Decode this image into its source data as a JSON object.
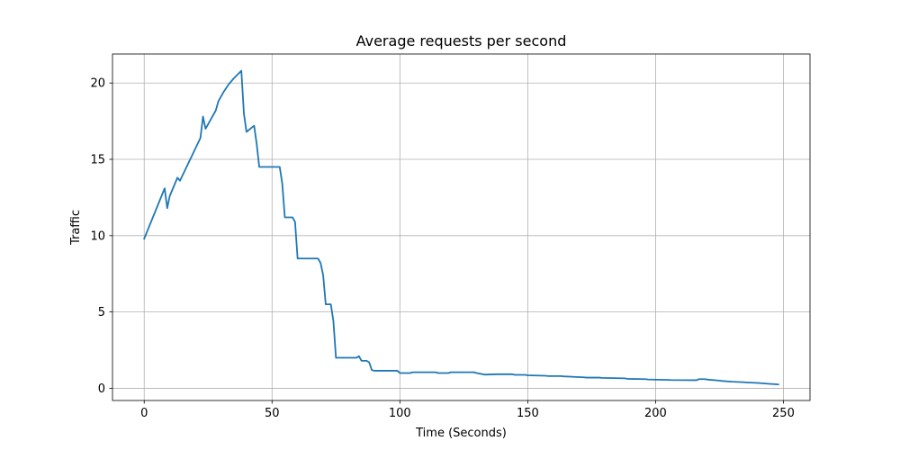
{
  "chart_data": {
    "type": "line",
    "title": "Average requests per second",
    "xlabel": "Time (Seconds)",
    "ylabel": "Traffic",
    "xlim": [
      -12.4,
      260.4
    ],
    "ylim": [
      -0.8,
      21.9
    ],
    "xticks": [
      0,
      50,
      100,
      150,
      200,
      250
    ],
    "yticks": [
      0,
      5,
      10,
      15,
      20
    ],
    "grid": true,
    "line_color": "#1f77b4",
    "grid_color": "#b0b0b0",
    "series": [
      {
        "x": [
          0,
          8,
          9,
          10,
          13,
          14,
          22,
          23,
          24,
          28,
          29,
          31,
          33,
          35,
          38,
          39,
          40,
          43,
          44,
          45,
          53,
          54,
          55,
          58,
          59,
          60,
          68,
          69,
          70,
          71,
          72,
          73,
          74,
          75,
          76,
          83,
          84,
          85,
          87,
          88,
          89,
          90,
          99,
          100,
          104,
          105,
          109,
          114,
          115,
          119,
          120,
          129,
          130,
          133,
          134,
          138,
          139,
          144,
          145,
          149,
          150,
          157,
          158,
          163,
          164,
          172,
          173,
          178,
          179,
          188,
          189,
          196,
          197,
          205,
          206,
          216,
          217,
          219,
          221,
          224,
          226,
          230,
          234,
          236,
          240,
          244,
          248
        ],
        "y": [
          9.8,
          13.1,
          11.8,
          12.6,
          13.8,
          13.6,
          16.4,
          17.8,
          17.0,
          18.2,
          18.8,
          19.4,
          19.9,
          20.3,
          20.8,
          18.0,
          16.8,
          17.2,
          16.0,
          14.5,
          14.5,
          13.4,
          11.2,
          11.2,
          10.9,
          8.5,
          8.5,
          8.2,
          7.4,
          5.5,
          5.5,
          5.5,
          4.4,
          2.0,
          2.0,
          2.0,
          2.1,
          1.8,
          1.8,
          1.7,
          1.2,
          1.15,
          1.15,
          1.0,
          1.0,
          1.05,
          1.05,
          1.05,
          1.0,
          1.0,
          1.05,
          1.05,
          1.0,
          0.9,
          0.9,
          0.92,
          0.92,
          0.92,
          0.88,
          0.88,
          0.85,
          0.82,
          0.8,
          0.8,
          0.78,
          0.72,
          0.7,
          0.7,
          0.68,
          0.65,
          0.62,
          0.6,
          0.58,
          0.55,
          0.54,
          0.53,
          0.6,
          0.6,
          0.56,
          0.52,
          0.48,
          0.43,
          0.4,
          0.38,
          0.35,
          0.3,
          0.25
        ]
      }
    ]
  }
}
